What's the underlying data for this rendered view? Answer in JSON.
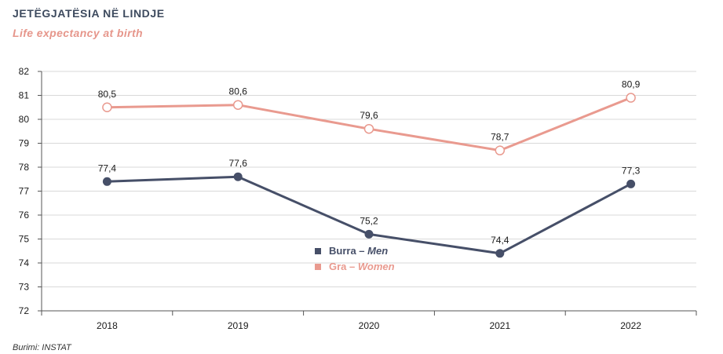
{
  "header": {
    "title": "JETËGJATËSIA NË LINDJE",
    "subtitle": "Life expectancy at birth"
  },
  "footer": {
    "source": "Burimi: INSTAT"
  },
  "colors": {
    "men": "#464f68",
    "women": "#e99a8f",
    "grid": "#d9d9d9",
    "axis": "#555555"
  },
  "chart_data": {
    "type": "line",
    "x": [
      "2018",
      "2019",
      "2020",
      "2021",
      "2022"
    ],
    "series": [
      {
        "key": "men",
        "name": "Burra",
        "name_en": "Men",
        "values": [
          77.4,
          77.6,
          75.2,
          74.4,
          77.3
        ],
        "labels": [
          "77,4",
          "77,6",
          "75,2",
          "74,4",
          "77,3"
        ],
        "marker": "filled-circle"
      },
      {
        "key": "women",
        "name": "Gra",
        "name_en": "Women",
        "values": [
          80.5,
          80.6,
          79.6,
          78.7,
          80.9
        ],
        "labels": [
          "80,5",
          "80,6",
          "79,6",
          "78,7",
          "80,9"
        ],
        "marker": "hollow-circle"
      }
    ],
    "ylim": [
      72,
      82
    ],
    "yticks": [
      72,
      73,
      74,
      75,
      76,
      77,
      78,
      79,
      80,
      81,
      82
    ],
    "grid": true,
    "legend": "center"
  }
}
